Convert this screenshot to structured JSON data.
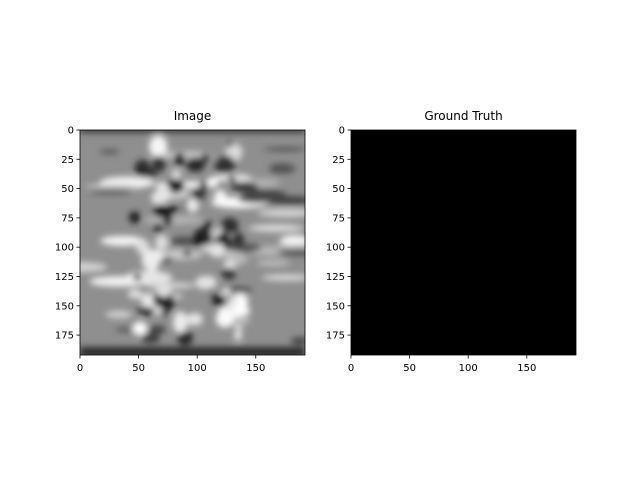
{
  "chart_data": [
    {
      "type": "heatmap",
      "title": "Image",
      "xlabel": "",
      "ylabel": "",
      "colormap": "gray",
      "xlim": [
        0,
        192
      ],
      "ylim": [
        192,
        0
      ],
      "x_ticks": [
        0,
        50,
        100,
        150
      ],
      "y_ticks": [
        0,
        25,
        50,
        75,
        100,
        125,
        150,
        175
      ],
      "grid": false,
      "description_pattern": "blurred grayscale texture with bright and dark elongated blobs"
    },
    {
      "type": "heatmap",
      "title": "Ground Truth",
      "xlabel": "",
      "ylabel": "",
      "colormap": "gray",
      "fill_color": "#000000",
      "xlim": [
        0,
        192
      ],
      "ylim": [
        192,
        0
      ],
      "x_ticks": [
        0,
        50,
        100,
        150
      ],
      "y_ticks": [
        0,
        25,
        50,
        75,
        100,
        125,
        150,
        175
      ],
      "grid": false
    }
  ]
}
